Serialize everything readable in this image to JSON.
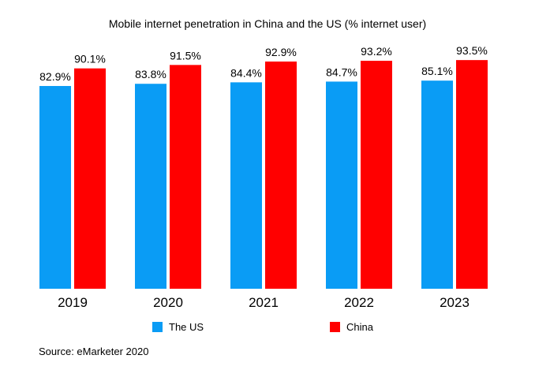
{
  "chart_data": {
    "type": "bar",
    "title": "Mobile internet penetration in China and the US (% internet user)",
    "categories": [
      "2019",
      "2020",
      "2021",
      "2022",
      "2023"
    ],
    "series": [
      {
        "name": "The US",
        "color": "#0a9cf5",
        "values": [
          82.9,
          83.8,
          84.4,
          84.7,
          85.1
        ],
        "labels": [
          "82.9%",
          "83.8%",
          "84.4%",
          "84.7%",
          "85.1%"
        ]
      },
      {
        "name": "China",
        "color": "#ff0000",
        "values": [
          90.1,
          91.5,
          92.9,
          93.2,
          93.5
        ],
        "labels": [
          "90.1%",
          "91.5%",
          "92.9%",
          "93.2%",
          "93.5%"
        ]
      }
    ],
    "ylim": [
      0,
      100
    ],
    "grid": false,
    "legend": "bottom",
    "source": "Source: eMarketer 2020"
  }
}
